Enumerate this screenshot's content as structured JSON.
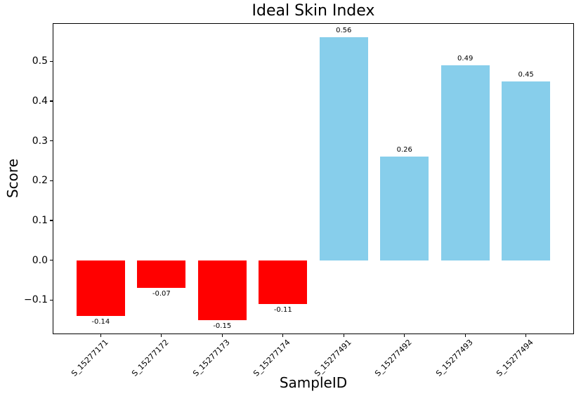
{
  "chart_data": {
    "type": "bar",
    "title": "Ideal Skin Index",
    "xlabel": "SampleID",
    "ylabel": "Score",
    "categories": [
      "S_15277171",
      "S_15277172",
      "S_15277173",
      "S_15277174",
      "S_15277491",
      "S_15277492",
      "S_15277493",
      "S_15277494"
    ],
    "values": [
      -0.14,
      -0.07,
      -0.15,
      -0.11,
      0.56,
      0.26,
      0.49,
      0.45
    ],
    "value_labels": [
      "-0.14",
      "-0.07",
      "-0.15",
      "-0.11",
      "0.56",
      "0.26",
      "0.49",
      "0.45"
    ],
    "bar_colors": {
      "positive": "#87ceeb",
      "negative": "#ff0000"
    },
    "axis_color": "#000000",
    "background_color": "#ffffff",
    "ylim": [
      -0.186,
      0.596
    ],
    "yticks": [
      0.5,
      0.4,
      0.3,
      0.2,
      0.1,
      0.0,
      -0.1
    ],
    "ytick_labels": [
      "0.5",
      "0.4",
      "0.3",
      "0.2",
      "0.1",
      "0.0",
      "−0.1"
    ],
    "xtick_rotation": 45,
    "grid": false,
    "legend": "none"
  }
}
